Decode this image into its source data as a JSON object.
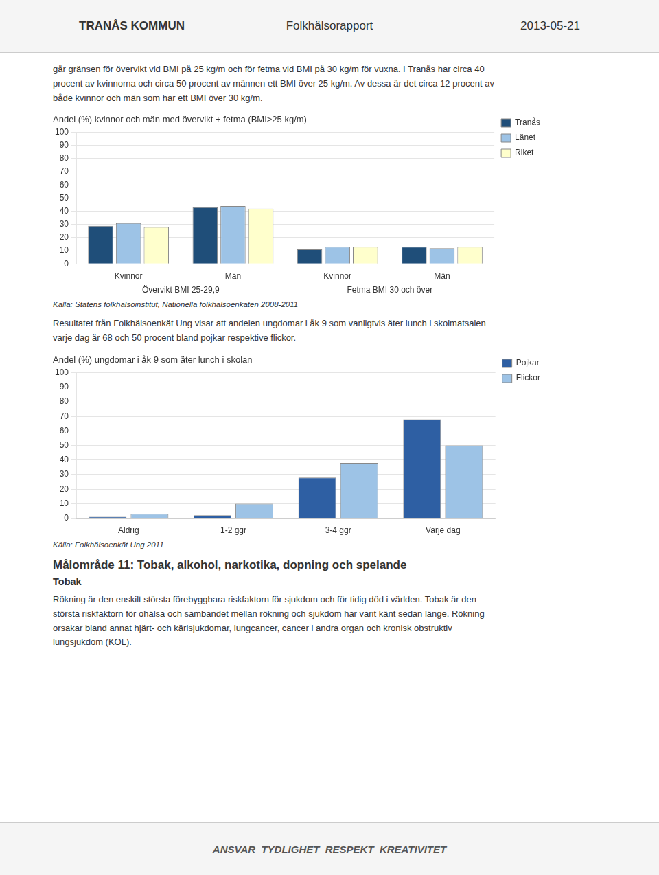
{
  "annotations": [
    "TRANÅS KOMMUN",
    "Folkhälsorapport",
    "2013-05-21",
    "går gränsen för övervikt vid BMI på 25 kg/m och för fetma vid BMI på 30 kg/m för vuxna. I Tranås har circa 40\nprocent av kvinnorna och circa 50 procent av männen ett BMI över 25 kg/m. Av dessa är det circa 12 procent av\nbåde kvinnor och män som har ett BMI över 30 kg/m.",
    "Resultatet från Folkhälsoenkät Ung visar att andelen ungdomar i åk 9 som vanligtvis äter lunch i skolmatsalen\nvarje dag är 68 och 50 procent bland pojkar respektive flickor.",
    "Målområde 11: Tobak, alkohol, narkotika, dopning och spelande",
    "Tobak",
    "Rökning är den enskilt största förebyggbara riskfaktorn för sjukdom och för tidig död i världen. Tobak är den\nstörsta riskfaktorn för ohälsa och sambandet mellan rökning och sjukdom har varit känt sedan länge. Rökning\norsakar bland annat hjärt- och kärlsjukdomar, lungcancer, cancer i andra organ och kronisk obstruktiv\nlungsjukdom (KOL).",
    "ANSVAR  TYDLIGHET  RESPEKT  KREATIVITET"
  ],
  "chart_data": [
    {
      "type": "bar",
      "title": "Andel (%) kvinnor och män med övervikt + fetma (BMI>25 kg/m)",
      "categories": [
        "Kvinnor",
        "Män",
        "Kvinnor",
        "Män"
      ],
      "annotations": [
        "Övervikt BMI 25-29,9",
        "Fetma BMI 30 och över"
      ],
      "series": [
        {
          "name": "Tranås",
          "color": "#1F4E79",
          "values": [
            29,
            43,
            11,
            13
          ]
        },
        {
          "name": "Länet",
          "color": "#9DC3E6",
          "values": [
            31,
            44,
            13,
            12
          ]
        },
        {
          "name": "Riket",
          "color": "#FFFFCC",
          "values": [
            28,
            42,
            13,
            13
          ]
        }
      ],
      "ylim": [
        0,
        100
      ],
      "yticks": [
        0,
        10,
        20,
        30,
        40,
        50,
        60,
        70,
        80,
        90,
        100
      ],
      "grid": true,
      "legend": "right",
      "source": "Källa: Statens folkhälsoinstitut, Nationella folkhälsoenkäten 2008-2011"
    },
    {
      "type": "bar",
      "title": "Andel (%) ungdomar i åk 9 som äter lunch i skolan",
      "categories": [
        "Aldrig",
        "1-2 ggr",
        "3-4 ggr",
        "Varje dag"
      ],
      "series": [
        {
          "name": "Pojkar",
          "color": "#2E5FA3",
          "values": [
            1,
            2,
            28,
            68
          ]
        },
        {
          "name": "Flickor",
          "color": "#9DC3E6",
          "values": [
            3,
            10,
            38,
            50
          ]
        }
      ],
      "ylim": [
        0,
        100
      ],
      "yticks": [
        0,
        10,
        20,
        30,
        40,
        50,
        60,
        70,
        80,
        90,
        100
      ],
      "grid": true,
      "legend": "right",
      "source": "Källa: Folkhälsoenkät Ung 2011"
    }
  ]
}
